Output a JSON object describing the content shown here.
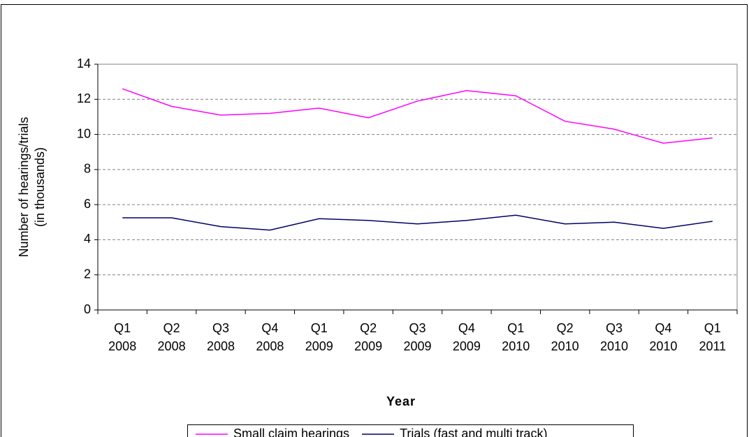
{
  "chart_data": {
    "type": "line",
    "y_label": [
      "Number of hearings/trials",
      "(in thousands)"
    ],
    "x_label": "Year",
    "categories": [
      "Q1 2008",
      "Q2 2008",
      "Q3 2008",
      "Q4 2008",
      "Q1 2009",
      "Q2 2009",
      "Q3 2009",
      "Q4 2009",
      "Q1 2010",
      "Q2 2010",
      "Q3 2010",
      "Q4 2010",
      "Q1 2011"
    ],
    "series": [
      {
        "name": "Small claim hearings",
        "color": "#ff00ff",
        "values": [
          12.6,
          11.6,
          11.1,
          11.2,
          11.5,
          10.95,
          11.9,
          12.5,
          12.2,
          10.75,
          10.3,
          9.5,
          9.8
        ]
      },
      {
        "name": "Trials (fast and multi track)",
        "color": "#000066",
        "values": [
          5.25,
          5.25,
          4.75,
          4.55,
          5.2,
          5.1,
          4.9,
          5.1,
          5.4,
          4.9,
          5.0,
          4.65,
          5.05
        ]
      }
    ],
    "ylim": [
      0,
      14
    ],
    "yticks": [
      0,
      2,
      4,
      6,
      8,
      10,
      12,
      14
    ],
    "grid": true,
    "legend": "bottom"
  }
}
